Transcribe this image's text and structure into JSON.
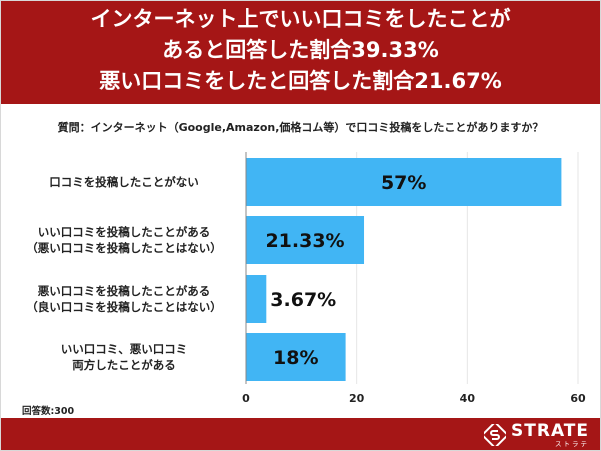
{
  "header": {
    "lines": [
      "インターネット上でいい口コミをしたことが",
      "あると回答した割合39.33%",
      "悪い口コミをしたと回答した割合21.67%"
    ]
  },
  "question": "質問：インターネット（Google,Amazon,価格コム等）で口コミ投稿をしたことがありますか？",
  "respondents": "回答数:300",
  "logo": {
    "main": "STRATE",
    "sub": "ストラテ",
    "icon": "strate-s-logo-icon"
  },
  "colors": {
    "header_bg": "#a51616",
    "bar": "#41b5f4",
    "axis": "#888888",
    "grid": "#e6e6e6"
  },
  "chart_data": {
    "type": "bar",
    "orientation": "horizontal",
    "categories": [
      [
        "口コミを投稿したことがない"
      ],
      [
        "いい口コミを投稿したことがある",
        "（悪い口コミを投稿したことはない）"
      ],
      [
        "悪い口コミを投稿したことがある",
        "（良い口コミを投稿したことはない）"
      ],
      [
        "いい口コミ、悪い口コミ",
        "両方したことがある"
      ]
    ],
    "values": [
      57,
      21.33,
      3.67,
      18
    ],
    "value_labels": [
      "57%",
      "21.33%",
      "3.67%",
      "18%"
    ],
    "xlim": [
      0,
      60
    ],
    "xticks": [
      0,
      20,
      40,
      60
    ],
    "grid": true
  }
}
